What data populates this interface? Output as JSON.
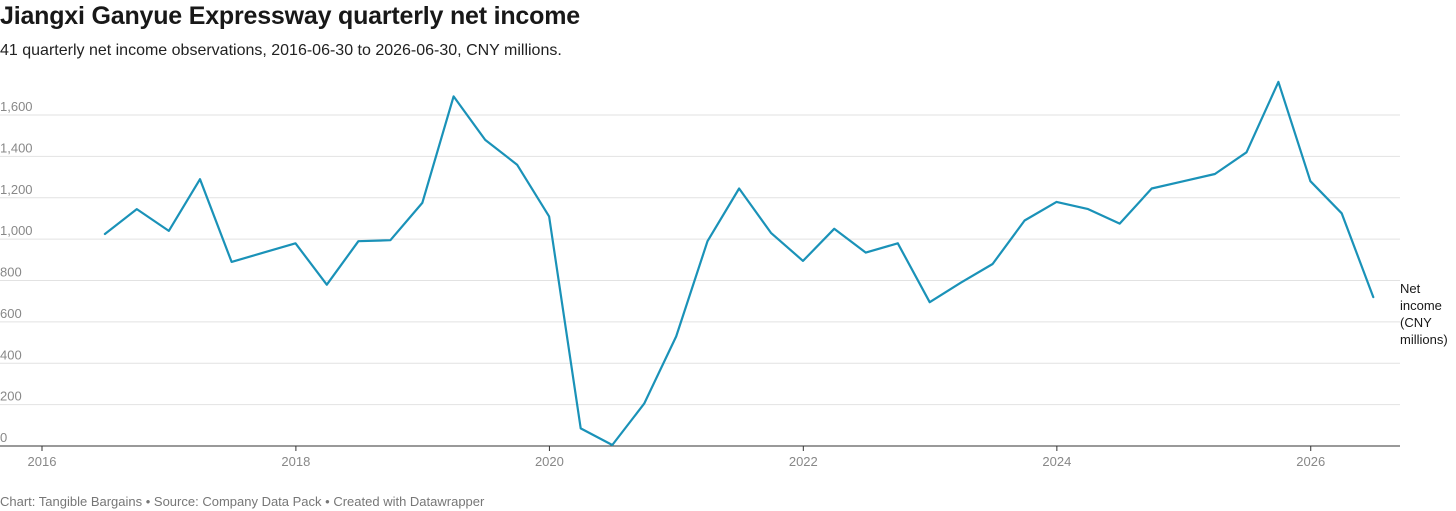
{
  "title": "Jiangxi Ganyue Expressway quarterly net income",
  "subtitle": "41 quarterly net income observations, 2016-06-30 to 2026-06-30, CNY millions.",
  "footer": {
    "chart_by": "Chart: Tangible Bargains",
    "separator": " • ",
    "source": "Source: Company Data Pack",
    "created_with": "Created with Datawrapper"
  },
  "colors": {
    "line": "#1a92b8",
    "grid": "#e2e2e2",
    "axis": "#333333",
    "tick_text": "#888888"
  },
  "chart_data": {
    "type": "line",
    "title": "Jiangxi Ganyue Expressway quarterly net income",
    "subtitle": "41 quarterly net income observations, 2016-06-30 to 2026-06-30, CNY millions.",
    "xlabel": "",
    "ylabel": "",
    "x_axis": "date",
    "xlim": [
      "2016-01-01",
      "2026-09-15"
    ],
    "ylim": [
      0,
      1750
    ],
    "yticks": [
      0,
      200,
      400,
      600,
      800,
      1000,
      1200,
      1400,
      1600
    ],
    "ytick_labels": [
      "0",
      "200",
      "400",
      "600",
      "800",
      "1,000",
      "1,200",
      "1,400",
      "1,600"
    ],
    "xticks": [
      "2016-01-01",
      "2018-01-01",
      "2020-01-01",
      "2022-01-01",
      "2024-01-01",
      "2026-01-01"
    ],
    "xtick_labels": [
      "2016",
      "2018",
      "2020",
      "2022",
      "2024",
      "2026"
    ],
    "grid": true,
    "legend": "none",
    "series": [
      {
        "name": "Net income (CNY millions)",
        "label_lines": [
          "Net",
          "income",
          "(CNY",
          "millions)"
        ],
        "x": [
          "2016-06-30",
          "2016-09-30",
          "2016-12-31",
          "2017-03-31",
          "2017-06-30",
          "2017-09-30",
          "2017-12-31",
          "2018-03-31",
          "2018-06-30",
          "2018-09-30",
          "2018-12-31",
          "2019-03-31",
          "2019-06-30",
          "2019-09-30",
          "2019-12-31",
          "2020-03-31",
          "2020-06-30",
          "2020-09-30",
          "2020-12-31",
          "2021-03-31",
          "2021-06-30",
          "2021-09-30",
          "2021-12-31",
          "2022-03-31",
          "2022-06-30",
          "2022-09-30",
          "2022-12-31",
          "2023-03-31",
          "2023-06-30",
          "2023-09-30",
          "2023-12-31",
          "2024-03-31",
          "2024-06-30",
          "2024-09-30",
          "2024-12-31",
          "2025-03-31",
          "2025-06-30",
          "2025-09-30",
          "2025-12-31",
          "2026-03-31",
          "2026-06-30"
        ],
        "y": [
          1025,
          1145,
          1040,
          1290,
          890,
          935,
          980,
          780,
          990,
          995,
          1175,
          1690,
          1480,
          1360,
          1110,
          85,
          5,
          205,
          530,
          990,
          1245,
          1030,
          895,
          1050,
          935,
          980,
          695,
          790,
          880,
          1090,
          1180,
          1145,
          1075,
          1245,
          1280,
          1315,
          1420,
          1760,
          1280,
          1125,
          720
        ]
      }
    ]
  }
}
